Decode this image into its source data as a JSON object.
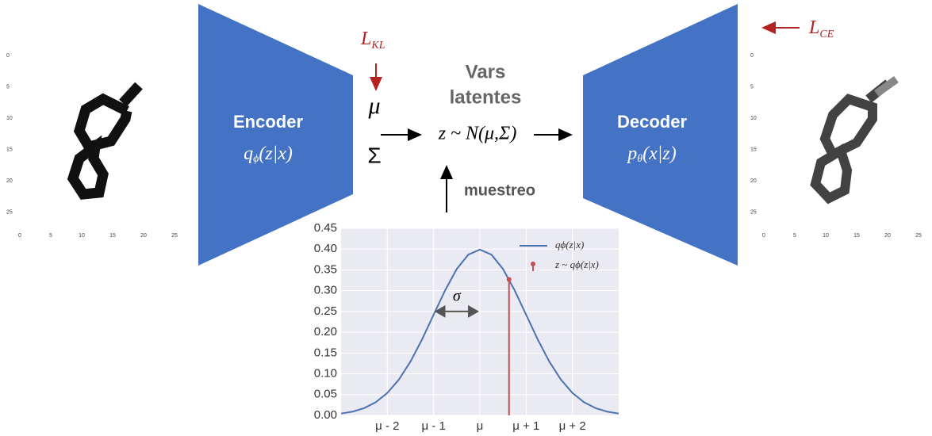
{
  "left_image": {
    "xticks": [
      0,
      5,
      10,
      15,
      20,
      25
    ],
    "yticks": [
      0,
      5,
      10,
      15,
      20,
      25
    ]
  },
  "right_image": {
    "xticks": [
      0,
      5,
      10,
      15,
      20,
      25
    ],
    "yticks": [
      0,
      5,
      10,
      15,
      20,
      25
    ]
  },
  "encoder": {
    "title": "Encoder",
    "formula": {
      "base": "q",
      "sub": "ϕ",
      "rest": "(z|x)"
    }
  },
  "decoder": {
    "title": "Decoder",
    "formula": {
      "base": "p",
      "sub": "θ",
      "rest": "(x|z)"
    }
  },
  "loss_kl": {
    "base": "L",
    "sub": "KL"
  },
  "loss_ce": {
    "base": "L",
    "sub": "CE"
  },
  "mu": "μ",
  "sigma": "Σ",
  "latent_title": [
    "Vars",
    "latentes"
  ],
  "latent_formula": "z ~ N(μ,Σ)",
  "sampling_label": "muestreo",
  "chart_data": {
    "type": "line",
    "x": [
      -3,
      -2.75,
      -2.5,
      -2.25,
      -2,
      -1.75,
      -1.5,
      -1.25,
      -1,
      -0.75,
      -0.5,
      -0.25,
      0,
      0.25,
      0.5,
      0.75,
      1,
      1.25,
      1.5,
      1.75,
      2,
      2.25,
      2.5,
      2.75,
      3
    ],
    "series": [
      {
        "name": "qϕ(z|x)",
        "color": "#4c72b0",
        "values": [
          0.0044,
          0.0091,
          0.0175,
          0.0317,
          0.054,
          0.0863,
          0.1295,
          0.1826,
          0.242,
          0.3011,
          0.3521,
          0.3867,
          0.3989,
          0.3867,
          0.3521,
          0.3011,
          0.242,
          0.1826,
          0.1295,
          0.0863,
          0.054,
          0.0317,
          0.0175,
          0.0091,
          0.0044
        ]
      }
    ],
    "sample": {
      "name": "z ~ qϕ(z|x)",
      "color": "#c44e52",
      "x": 0.63,
      "y": 0.327
    },
    "sigma_arrow": {
      "label": "σ",
      "x": [
        -1,
        0
      ],
      "y": 0.25
    },
    "xlim": [
      -3,
      3
    ],
    "ylim": [
      0,
      0.45
    ],
    "xticks": [
      {
        "value": -2,
        "label": "μ - 2"
      },
      {
        "value": -1,
        "label": "μ - 1"
      },
      {
        "value": 0,
        "label": "μ"
      },
      {
        "value": 1,
        "label": "μ + 1"
      },
      {
        "value": 2,
        "label": "μ + 2"
      }
    ],
    "yticks": [
      {
        "value": 0,
        "label": "0.00"
      },
      {
        "value": 0.05,
        "label": "0.05"
      },
      {
        "value": 0.1,
        "label": "0.10"
      },
      {
        "value": 0.15,
        "label": "0.15"
      },
      {
        "value": 0.2,
        "label": "0.20"
      },
      {
        "value": 0.25,
        "label": "0.25"
      },
      {
        "value": 0.3,
        "label": "0.30"
      },
      {
        "value": 0.35,
        "label": "0.35"
      },
      {
        "value": 0.4,
        "label": "0.40"
      },
      {
        "value": 0.45,
        "label": "0.45"
      }
    ],
    "grid": true,
    "legend": "upper right"
  }
}
